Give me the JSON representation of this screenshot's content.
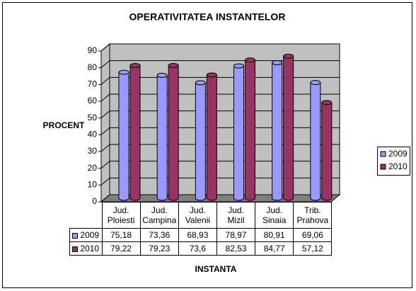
{
  "chart_data": {
    "type": "bar3d",
    "title": "OPERATIVITATEA INSTANTELOR",
    "y_label": "PROCENT",
    "x_label": "INSTANTA",
    "categories": [
      "Jud.\nPloiesti",
      "Jud.\nCampina",
      "Jud.\nValenii",
      "Jud.\nMizil",
      "Jud.\nSinaia",
      "Trib.\nPrahova"
    ],
    "series": [
      {
        "name": "2009",
        "color": "#9999ff",
        "values": [
          75.18,
          73.36,
          68.93,
          78.97,
          80.91,
          69.06
        ],
        "value_labels": [
          "75,18",
          "73,36",
          "68,93",
          "78,97",
          "80,91",
          "69,06"
        ]
      },
      {
        "name": "2010",
        "color": "#993366",
        "values": [
          79.22,
          79.23,
          73.6,
          82.53,
          84.77,
          57.12
        ],
        "value_labels": [
          "79,22",
          "79,23",
          "73,6",
          "82,53",
          "84,77",
          "57,12"
        ]
      }
    ],
    "ylim": [
      0,
      90
    ],
    "yticks": [
      0,
      10,
      20,
      30,
      40,
      50,
      60,
      70,
      80,
      90
    ],
    "grid": true,
    "legend": "right"
  }
}
